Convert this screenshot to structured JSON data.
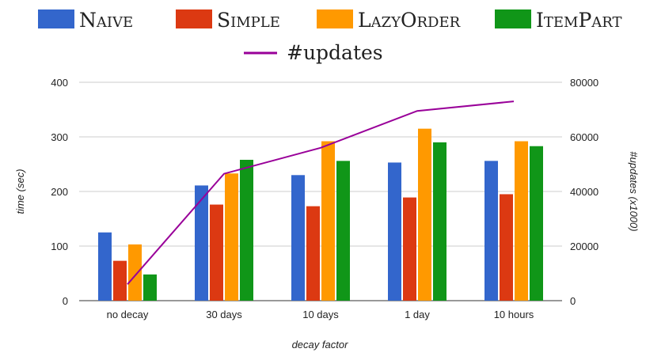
{
  "chart_data": {
    "type": "bar",
    "categories": [
      "no decay",
      "30 days",
      "10 days",
      "1 day",
      "10 hours"
    ],
    "series": [
      {
        "name": "Naive",
        "color": "#3366cc",
        "values": [
          125,
          211,
          230,
          253,
          256
        ]
      },
      {
        "name": "Simple",
        "color": "#dc3912",
        "values": [
          73,
          176,
          173,
          189,
          195
        ]
      },
      {
        "name": "LazyOrder",
        "color": "#ff9900",
        "values": [
          103,
          233,
          292,
          315,
          292
        ]
      },
      {
        "name": "ItemPart",
        "color": "#109618",
        "values": [
          48,
          258,
          256,
          290,
          283
        ]
      }
    ],
    "line_series": {
      "name": "#updates",
      "color": "#990099",
      "axis": "right",
      "values": [
        6000,
        46500,
        56000,
        69500,
        73000
      ]
    },
    "xlabel": "decay factor",
    "ylabel": "time (sec)",
    "y2label": "#updates (x1000)",
    "ylim": [
      0,
      400
    ],
    "yticks": [
      0,
      100,
      200,
      300,
      400
    ],
    "y2lim": [
      0,
      80000
    ],
    "y2ticks": [
      0,
      20000,
      40000,
      60000,
      80000
    ],
    "grid": true,
    "legend_position": "top"
  }
}
